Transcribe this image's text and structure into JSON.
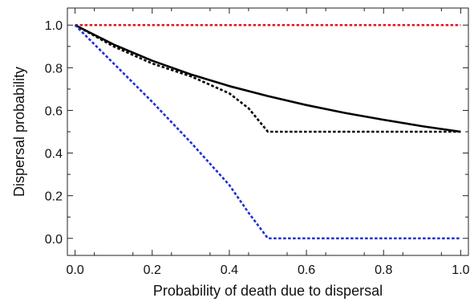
{
  "chart_data": {
    "type": "line",
    "xlabel": "Probability of death due to dispersal",
    "ylabel": "Dispersal probability",
    "xlim": [
      -0.02,
      1.02
    ],
    "ylim": [
      -0.08,
      1.08
    ],
    "xticks": [
      0.0,
      0.2,
      0.4,
      0.6,
      0.8,
      1.0
    ],
    "yticks": [
      0.0,
      0.2,
      0.4,
      0.6,
      0.8,
      1.0
    ],
    "xtick_labels": [
      "0.0",
      "0.2",
      "0.4",
      "0.6",
      "0.8",
      "1.0"
    ],
    "ytick_labels": [
      "0.0",
      "0.2",
      "0.4",
      "0.6",
      "0.8",
      "1.0"
    ],
    "grid": false,
    "series": [
      {
        "color": "#e8141c",
        "style": "dotted",
        "x": [
          0.0,
          0.25,
          0.5,
          0.75,
          1.0
        ],
        "y": [
          1.0,
          1.0,
          1.0,
          1.0,
          1.0
        ]
      },
      {
        "color": "#000000",
        "style": "solid",
        "x": [
          0.0,
          0.1,
          0.2,
          0.3,
          0.4,
          0.5,
          0.6,
          0.7,
          0.8,
          0.9,
          1.0
        ],
        "y": [
          1.0,
          0.909,
          0.833,
          0.769,
          0.714,
          0.667,
          0.625,
          0.588,
          0.556,
          0.526,
          0.5
        ]
      },
      {
        "color": "#000000",
        "style": "dotted",
        "x": [
          0.0,
          0.1,
          0.2,
          0.3,
          0.4,
          0.45,
          0.5,
          1.0
        ],
        "y": [
          1.0,
          0.9,
          0.82,
          0.76,
          0.68,
          0.61,
          0.5,
          0.5
        ]
      },
      {
        "color": "#1c2fd6",
        "style": "dotted",
        "x": [
          0.0,
          0.1,
          0.2,
          0.3,
          0.4,
          0.45,
          0.5,
          1.0
        ],
        "y": [
          1.0,
          0.82,
          0.64,
          0.45,
          0.25,
          0.12,
          0.0,
          0.0
        ]
      }
    ]
  }
}
